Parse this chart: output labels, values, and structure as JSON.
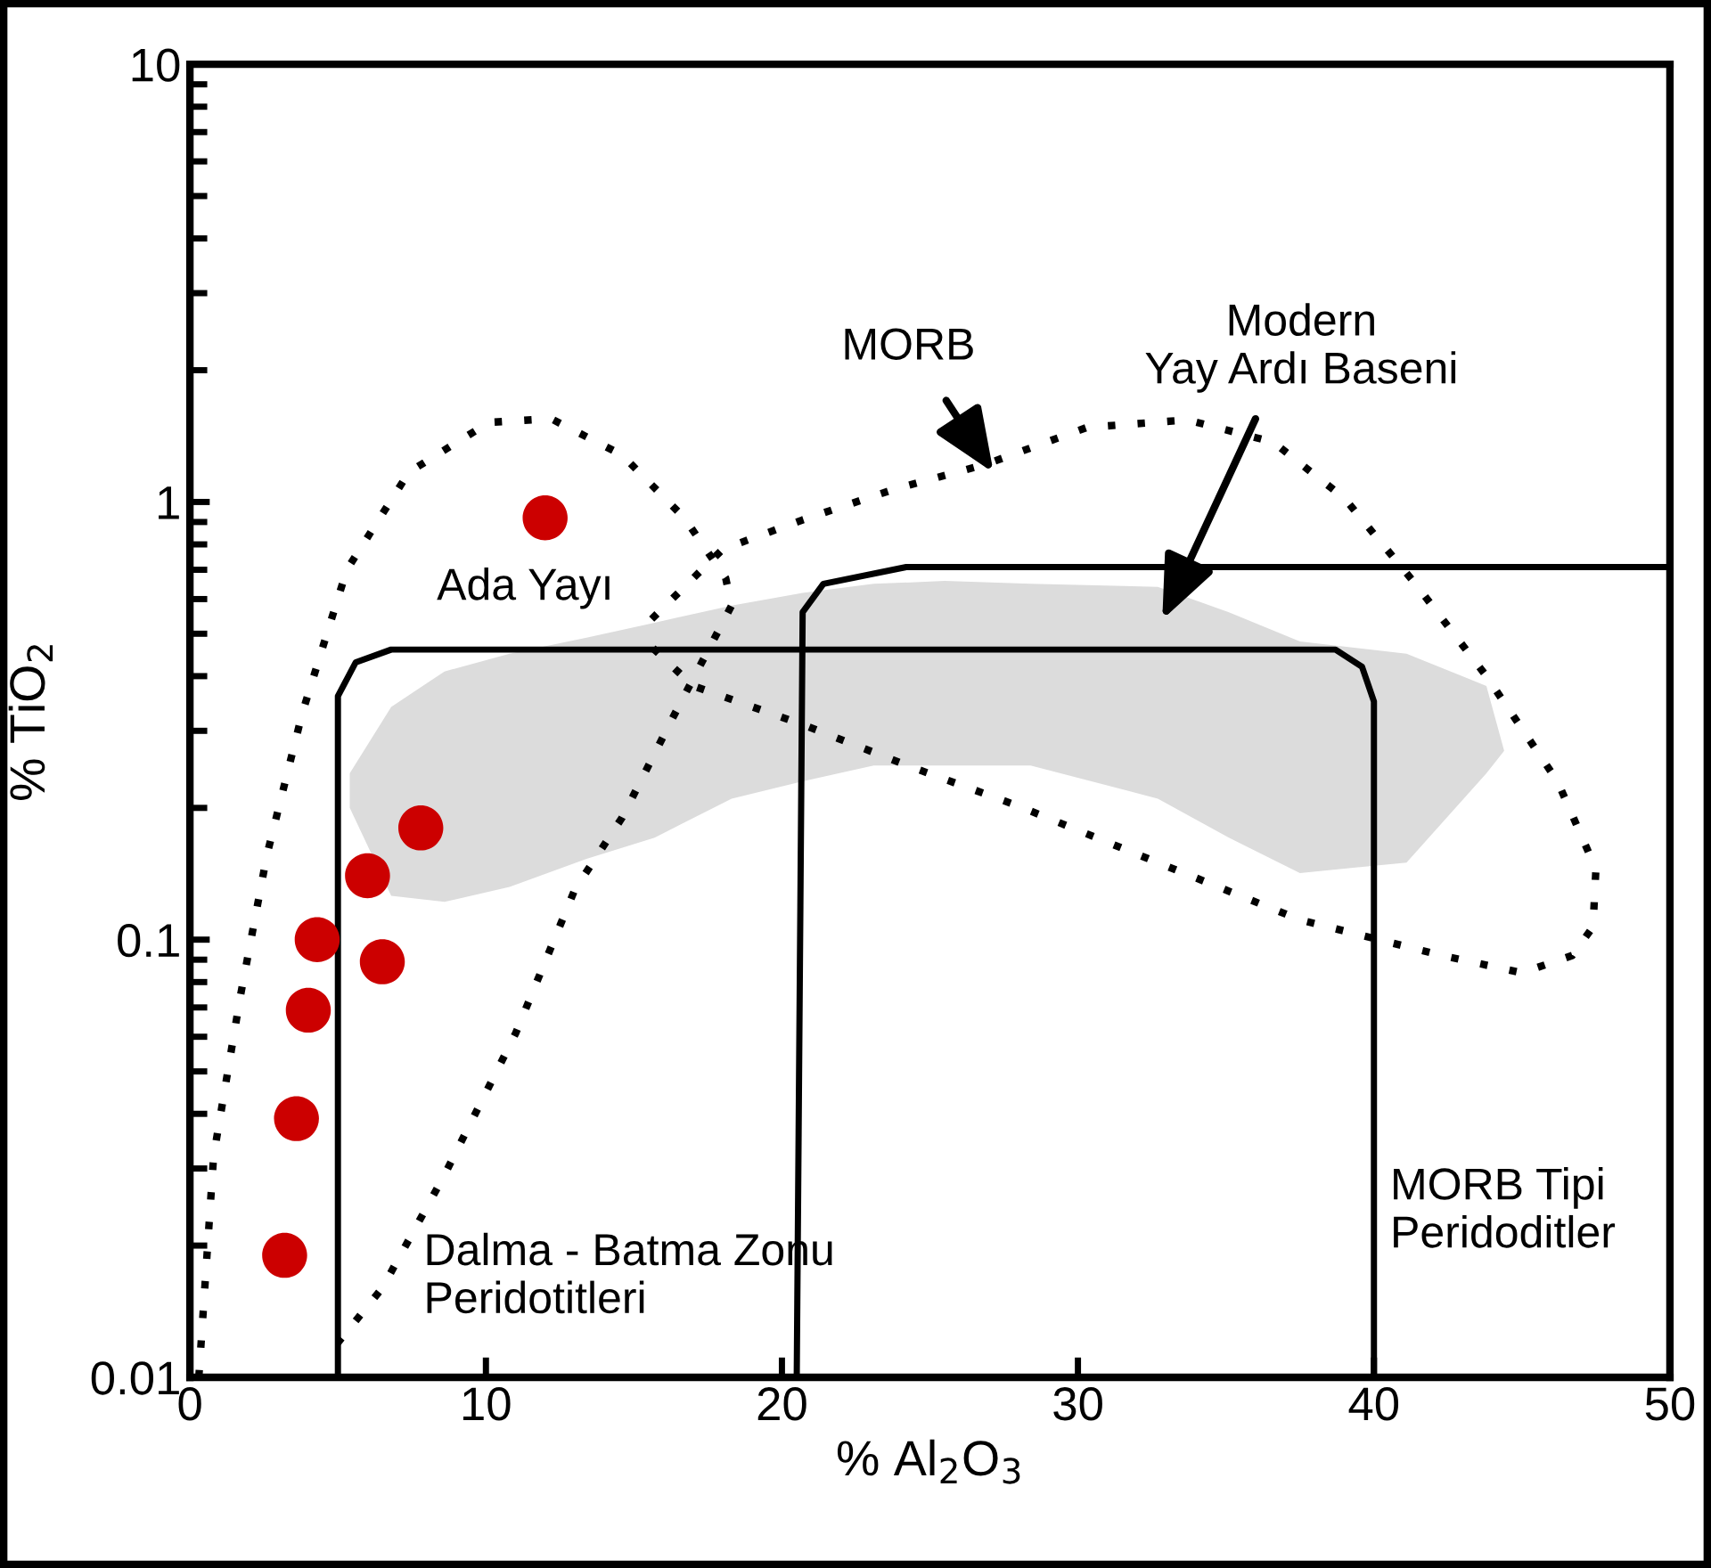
{
  "chart_data": {
    "type": "scatter",
    "xlabel": "% Al$_{2}$O$_{3}$",
    "ylabel": "% TiO$_{2}$",
    "xlim": [
      0,
      50
    ],
    "xticks": [
      0,
      10,
      20,
      30,
      40,
      50
    ],
    "ylim": [
      0.01,
      10
    ],
    "yticks": [
      0.01,
      0.1,
      1,
      10
    ],
    "log": "y",
    "grid": false,
    "legend": false,
    "series": [
      {
        "type": "area",
        "color": "#dcdcdc",
        "x": [
          5.4,
          6.8,
          8.6,
          10.8,
          13.4,
          15.7,
          18.3,
          20.7,
          23.1,
          25.5,
          28.4,
          32.7,
          35.1,
          37.5,
          41.1,
          43.8,
          44.4,
          43.8,
          41.1,
          37.5,
          35.1,
          32.7,
          28.4,
          25.5,
          23.1,
          20.7,
          18.3,
          15.7,
          13.4,
          10.8,
          8.6,
          6.8,
          5.4
        ],
        "values": [
          0.24,
          0.34,
          0.41,
          0.45,
          0.49,
          0.53,
          0.58,
          0.62,
          0.65,
          0.66,
          0.65,
          0.64,
          0.56,
          0.48,
          0.45,
          0.38,
          0.27,
          0.24,
          0.15,
          0.142,
          0.171,
          0.21,
          0.25,
          0.25,
          0.25,
          0.23,
          0.21,
          0.171,
          0.153,
          0.132,
          0.122,
          0.126,
          0.2
        ]
      },
      {
        "type": "line",
        "color": "#000000",
        "line_style": "solid",
        "x": [
          5,
          5,
          5.6,
          6.8,
          38.7,
          39.6,
          40,
          40
        ],
        "values": [
          0.01,
          0.36,
          0.43,
          0.46,
          0.46,
          0.42,
          0.35,
          0.01
        ]
      },
      {
        "type": "line",
        "color": "#000000",
        "line_style": "solid",
        "x": [
          20.5,
          20.7,
          21.4,
          24.2,
          50
        ],
        "values": [
          0.01,
          0.56,
          0.65,
          0.71,
          0.71
        ]
      },
      {
        "type": "line",
        "color": "#000000",
        "line_style": "dotted",
        "x": [
          0.3,
          0.8,
          1.7,
          2.6,
          3.8,
          5.3,
          7.4,
          10.1,
          12.2,
          14.6,
          16.7,
          18.1,
          18.3,
          16.4,
          14.6,
          13.0,
          11.0,
          8.6,
          6.5,
          5.0
        ],
        "values": [
          0.01,
          0.032,
          0.074,
          0.156,
          0.33,
          0.7,
          1.17,
          1.52,
          1.55,
          1.28,
          0.92,
          0.67,
          0.58,
          0.33,
          0.19,
          0.13,
          0.061,
          0.029,
          0.016,
          0.012
        ]
      },
      {
        "type": "line",
        "color": "#000000",
        "line_style": "dotted",
        "x": [
          15.6,
          18.0,
          20.7,
          23.8,
          26.9,
          30.3,
          33.7,
          36.6,
          39.0,
          41.4,
          43.8,
          46.2,
          47.5,
          47.4,
          46.7,
          45.0,
          42.3,
          37.5,
          32.7,
          27.9,
          24.3,
          20.7,
          17.0,
          15.4
        ],
        "values": [
          0.54,
          0.78,
          0.91,
          1.07,
          1.22,
          1.48,
          1.54,
          1.37,
          1.02,
          0.65,
          0.4,
          0.23,
          0.145,
          0.107,
          0.092,
          0.084,
          0.092,
          0.111,
          0.15,
          0.203,
          0.249,
          0.31,
          0.38,
          0.48
        ]
      },
      {
        "color": "#cc0000",
        "marker": "circle",
        "x": [
          12.0,
          7.8,
          6.0,
          4.3,
          6.5,
          4.0,
          3.6,
          3.2
        ],
        "values": [
          0.92,
          0.18,
          0.14,
          0.1,
          0.089,
          0.069,
          0.039,
          0.019
        ]
      }
    ],
    "annotations": [
      "Ada Yayı",
      "Dalma - Batma Zonu\nPeridotitleri",
      "MORB Tipi\nPeridoditler",
      "MORB",
      "Modern\nYay Ardı Baseni"
    ]
  }
}
